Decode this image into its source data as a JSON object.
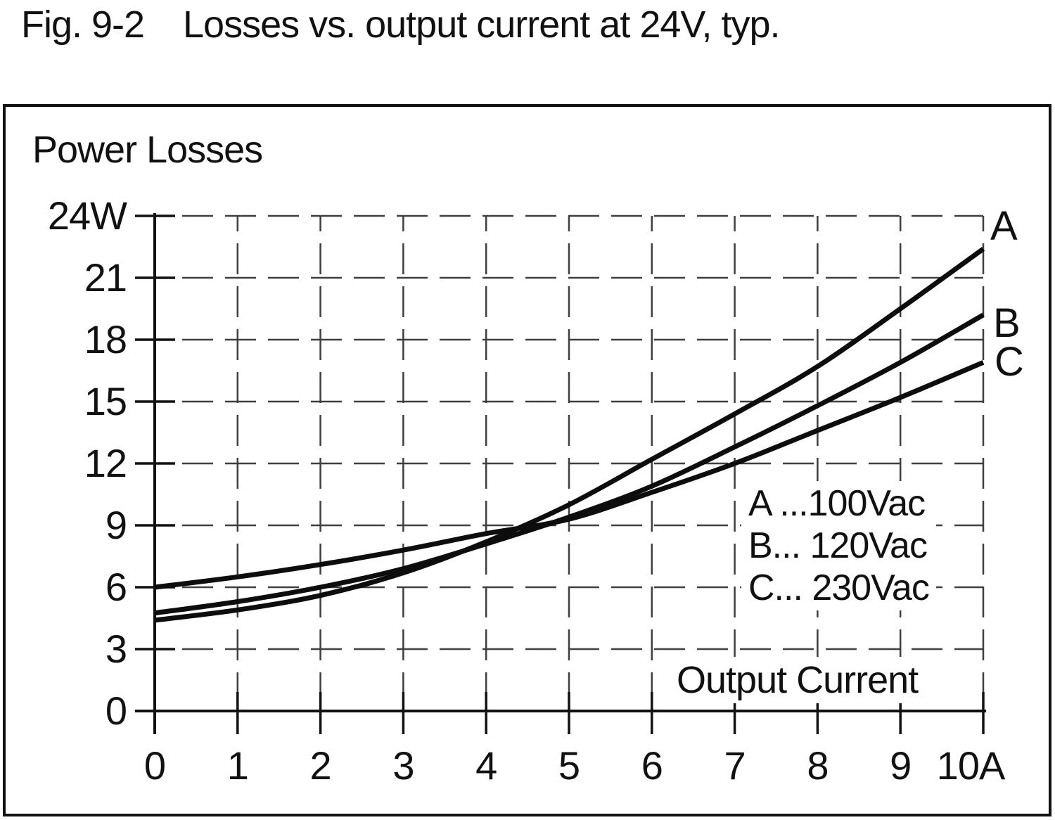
{
  "title": {
    "figure": "Fig. 9-2",
    "text": "Losses vs. output current at 24V, typ."
  },
  "chart_data": {
    "type": "line",
    "y_title": "Power Losses",
    "x_title": "Output Current",
    "x": [
      0,
      1,
      2,
      3,
      4,
      5,
      6,
      7,
      8,
      9,
      10
    ],
    "series": [
      {
        "name": "A",
        "voltage": "100Vac",
        "values": [
          4.4,
          4.9,
          5.6,
          6.7,
          8.2,
          10.0,
          12.2,
          14.4,
          16.7,
          19.5,
          22.4
        ]
      },
      {
        "name": "B",
        "voltage": "120Vac",
        "values": [
          4.75,
          5.3,
          6.0,
          6.9,
          8.1,
          9.4,
          10.9,
          12.8,
          14.8,
          16.9,
          19.2
        ]
      },
      {
        "name": "C",
        "voltage": "230Vac",
        "values": [
          6.0,
          6.5,
          7.1,
          7.8,
          8.6,
          9.3,
          10.6,
          12.0,
          13.6,
          15.2,
          16.9
        ]
      }
    ],
    "legend": [
      "A ...100Vac",
      "B... 120Vac",
      "C... 230Vac"
    ],
    "legend_position": "right-middle",
    "x_tick_values": [
      0,
      1,
      2,
      3,
      4,
      5,
      6,
      7,
      8,
      9,
      10
    ],
    "x_tick_labels": [
      "0",
      "1",
      "2",
      "3",
      "4",
      "5",
      "6",
      "7",
      "8",
      "9",
      "10A"
    ],
    "y_tick_values": [
      0,
      3,
      6,
      9,
      12,
      15,
      18,
      21,
      24
    ],
    "y_tick_labels": [
      "0",
      "3",
      "6",
      "9",
      "12",
      "15",
      "18",
      "21",
      "24W"
    ],
    "xlim": [
      0,
      10
    ],
    "ylim": [
      0,
      24
    ],
    "grid": "dashed",
    "colors": {
      "line": "#0d0d0d",
      "grid": "#3f3f3f",
      "frame": "#111111"
    }
  }
}
